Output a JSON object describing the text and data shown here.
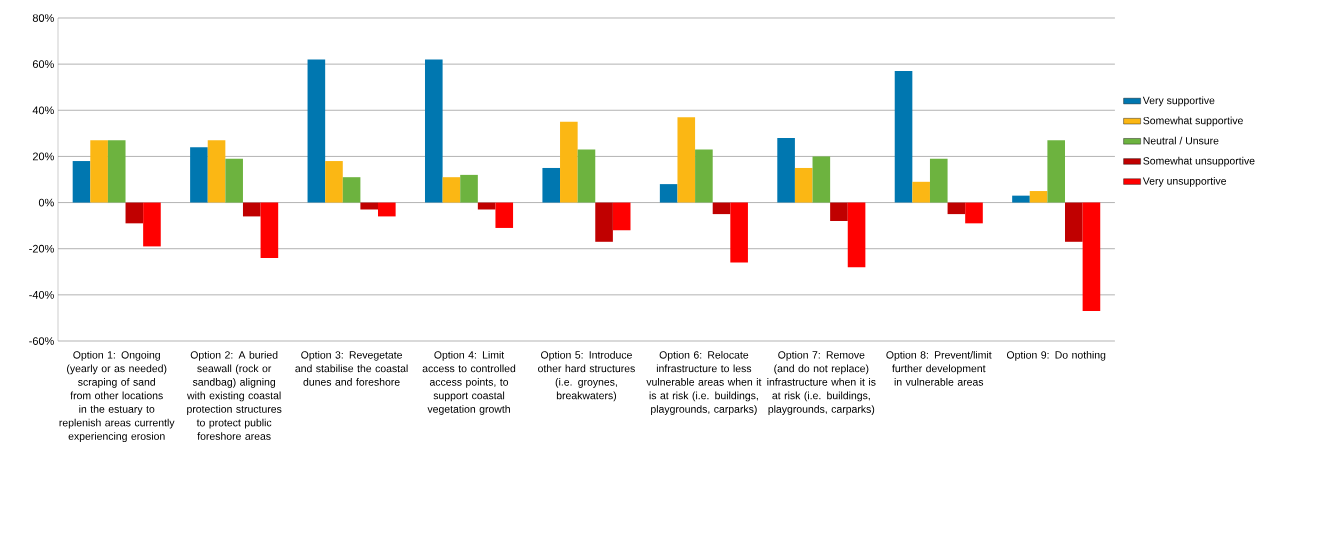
{
  "chart_data": {
    "type": "bar",
    "categories": [
      "Option 1: Ongoing (yearly or as needed) scraping of sand from other locations in the estuary to replenish areas currently experiencing erosion",
      "Option 2: A buried seawall (rock or sandbag) aligning with existing coastal protection structures to protect public foreshore areas",
      "Option 3: Revegetate and stabilise the coastal dunes and foreshore",
      "Option 4: Limit access to controlled access points, to support coastal vegetation growth",
      "Option 5: Introduce other hard structures (i.e. groynes, breakwaters)",
      "Option 6: Relocate infrastructure to less vulnerable areas when it is at risk (i.e. buildings, playgrounds, carparks)",
      "Option 7: Remove (and do not replace) infrastructure when it is at risk (i.e. buildings, playgrounds, carparks)",
      "Option 8: Prevent/limit further development in vulnerable areas",
      "Option 9: Do nothing"
    ],
    "series": [
      {
        "name": "Very supportive",
        "color": "#0077b0",
        "values": [
          18,
          24,
          62,
          62,
          15,
          8,
          28,
          57,
          3
        ]
      },
      {
        "name": "Somewhat supportive",
        "color": "#fbb714",
        "values": [
          27,
          27,
          18,
          11,
          35,
          37,
          15,
          9,
          5
        ]
      },
      {
        "name": "Neutral / Unsure",
        "color": "#6db33f",
        "values": [
          27,
          19,
          11,
          12,
          23,
          23,
          20,
          19,
          27
        ]
      },
      {
        "name": "Somewhat unsupportive",
        "color": "#c00000",
        "values": [
          -9,
          -6,
          -3,
          -3,
          -17,
          -5,
          -8,
          -5,
          -17
        ]
      },
      {
        "name": "Very unsupportive",
        "color": "#ff0000",
        "values": [
          -19,
          -24,
          -6,
          -11,
          -12,
          -26,
          -28,
          -9,
          -47
        ]
      }
    ],
    "ylim": [
      -60,
      80
    ],
    "yticks": [
      {
        "value": -60,
        "label": "-60%"
      },
      {
        "value": -40,
        "label": "-40%"
      },
      {
        "value": -20,
        "label": "-20%"
      },
      {
        "value": 0,
        "label": "0%"
      },
      {
        "value": 20,
        "label": "20%"
      },
      {
        "value": 40,
        "label": "40%"
      },
      {
        "value": 60,
        "label": "60%"
      },
      {
        "value": 80,
        "label": "80%"
      }
    ],
    "grid": "y",
    "legend": "right"
  }
}
